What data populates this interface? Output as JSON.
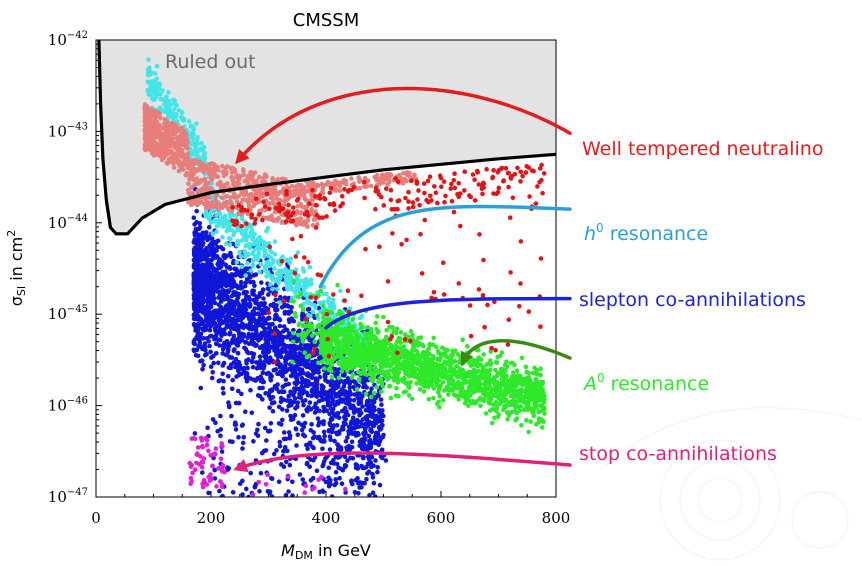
{
  "chart_data": {
    "type": "scatter",
    "title": "CMSSM",
    "xlabel": {
      "main": "M",
      "sub": "DM",
      "rest": " in GeV"
    },
    "ylabel": {
      "main": "σ",
      "sub": "SI",
      "rest": " in cm",
      "sup": "2"
    },
    "xlim": [
      0,
      800
    ],
    "ylim_log10": [
      -47,
      -42
    ],
    "yscale": "log",
    "x_ticks": [
      {
        "value": 0,
        "label": "0"
      },
      {
        "value": 200,
        "label": "200"
      },
      {
        "value": 400,
        "label": "400"
      },
      {
        "value": 600,
        "label": "600"
      },
      {
        "value": 800,
        "label": "800"
      }
    ],
    "y_ticks": [
      {
        "exp": -42,
        "base": "10",
        "sup": "−42"
      },
      {
        "exp": -43,
        "base": "10",
        "sup": "−43"
      },
      {
        "exp": -44,
        "base": "10",
        "sup": "−44"
      },
      {
        "exp": -45,
        "base": "10",
        "sup": "−45"
      },
      {
        "exp": -46,
        "base": "10",
        "sup": "−46"
      },
      {
        "exp": -47,
        "base": "10",
        "sup": "−47"
      }
    ],
    "excluded_region": {
      "label": "Ruled out",
      "fill": "#e3e3e3",
      "boundary_color": "#000000",
      "boundary": [
        [
          5,
          -42.0
        ],
        [
          8,
          -42.7
        ],
        [
          12,
          -43.3
        ],
        [
          18,
          -43.75
        ],
        [
          25,
          -44.05
        ],
        [
          35,
          -44.12
        ],
        [
          55,
          -44.12
        ],
        [
          80,
          -43.95
        ],
        [
          120,
          -43.8
        ],
        [
          200,
          -43.67
        ],
        [
          300,
          -43.58
        ],
        [
          400,
          -43.5
        ],
        [
          500,
          -43.42
        ],
        [
          600,
          -43.36
        ],
        [
          700,
          -43.3
        ],
        [
          800,
          -43.25
        ]
      ]
    },
    "series": [
      {
        "key": "well_tempered",
        "color": "#e87d7a"
      },
      {
        "key": "h0",
        "color": "#44e5e8"
      },
      {
        "key": "slepton",
        "color": "#1016d8"
      },
      {
        "key": "A0",
        "color": "#2ee82a"
      },
      {
        "key": "stop",
        "color": "#e31fd6"
      },
      {
        "key": "red",
        "color": "#e31414"
      }
    ],
    "annotations": [
      {
        "key": "well",
        "text": "Well tempered neutralino",
        "color": "#e61b1b",
        "curve": [
          [
            800,
            -43.02
          ],
          [
            640,
            -42.35
          ],
          [
            390,
            -42.3
          ],
          [
            250,
            -43.3
          ]
        ],
        "arrowhead": true
      },
      {
        "key": "h0",
        "text_main": "h",
        "text_sup": "0",
        "text_rest": " resonance",
        "color": "#2a9fdc",
        "curve": [
          [
            800,
            -43.85
          ],
          [
            600,
            -43.8
          ],
          [
            470,
            -43.7
          ],
          [
            390,
            -44.7
          ]
        ],
        "arrowhead": false
      },
      {
        "key": "slepton",
        "text": "slepton co-annihilations",
        "color": "#1a22dd",
        "curve": [
          [
            800,
            -44.83
          ],
          [
            620,
            -44.83
          ],
          [
            460,
            -44.82
          ],
          [
            400,
            -45.15
          ]
        ],
        "arrowhead": false
      },
      {
        "key": "A0",
        "text_main": "A",
        "text_sup": "0",
        "text_rest": " resonance",
        "color": "#3b8a16",
        "curve": [
          [
            800,
            -45.48
          ],
          [
            720,
            -45.2
          ],
          [
            660,
            -45.25
          ],
          [
            640,
            -45.5
          ]
        ],
        "arrowhead": true
      },
      {
        "key": "stop",
        "text": "stop co-annihilations",
        "color": "#e0207a",
        "curve": [
          [
            800,
            -46.65
          ],
          [
            620,
            -46.55
          ],
          [
            380,
            -46.4
          ],
          [
            250,
            -46.68
          ]
        ],
        "arrowhead": true
      }
    ]
  }
}
